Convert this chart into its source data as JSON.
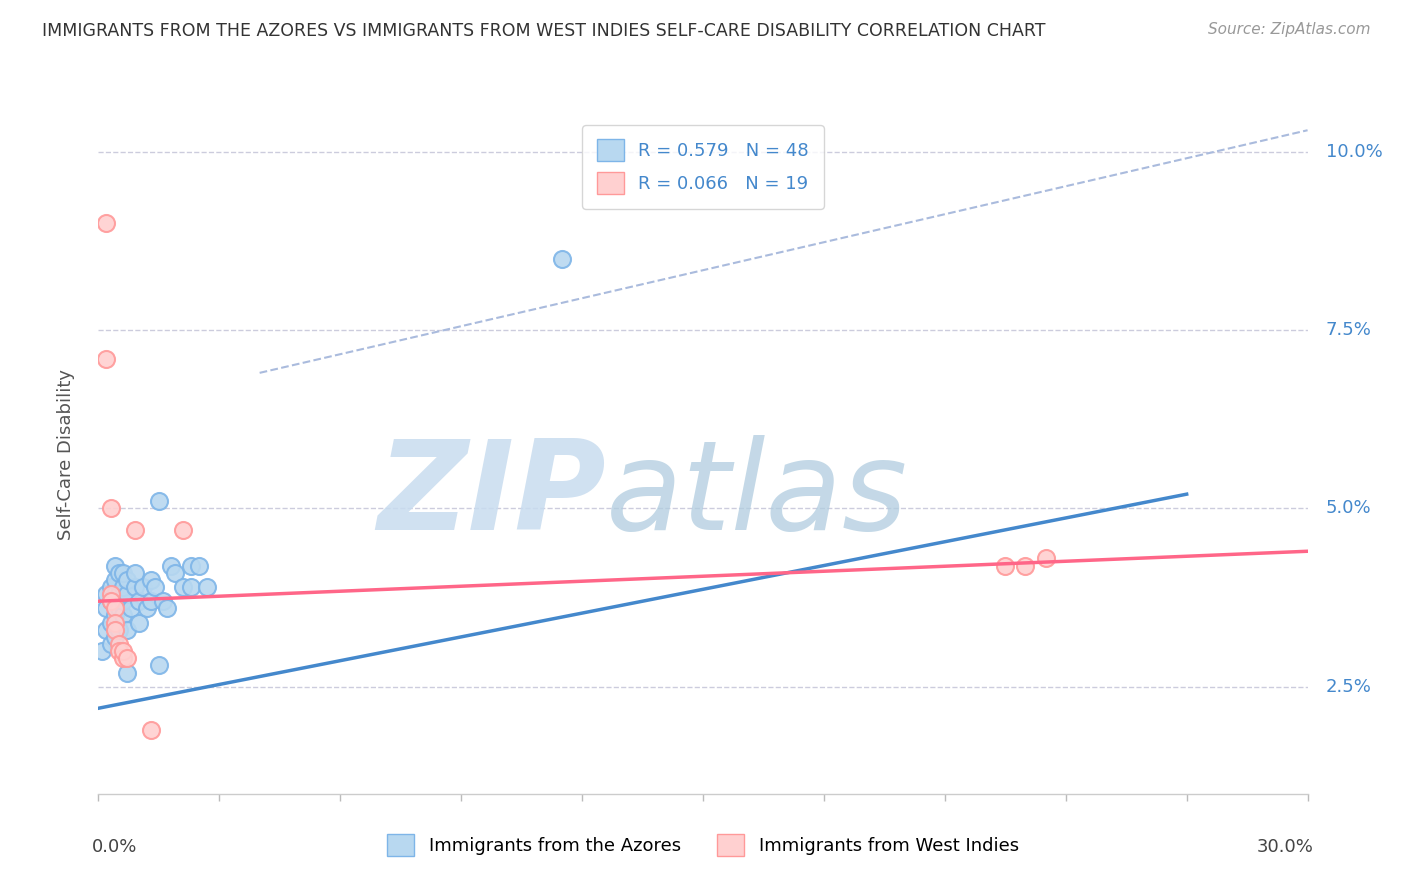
{
  "title": "IMMIGRANTS FROM THE AZORES VS IMMIGRANTS FROM WEST INDIES SELF-CARE DISABILITY CORRELATION CHART",
  "source": "Source: ZipAtlas.com",
  "ylabel": "Self-Care Disability",
  "xlim": [
    0.0,
    0.3
  ],
  "ylim": [
    0.01,
    0.105
  ],
  "ylim_display": [
    0.0,
    0.105
  ],
  "ytick_values": [
    0.025,
    0.05,
    0.075,
    0.1
  ],
  "ytick_labels": [
    "2.5%",
    "5.0%",
    "7.5%",
    "10.0%"
  ],
  "xtick_values": [
    0.0,
    0.03,
    0.06,
    0.09,
    0.12,
    0.15,
    0.18,
    0.21,
    0.24,
    0.27,
    0.3
  ],
  "blue_R": 0.579,
  "blue_N": 48,
  "pink_R": 0.066,
  "pink_N": 19,
  "blue_dot_color": "#7EB5E8",
  "blue_dot_fill": "#B8D8F0",
  "pink_dot_color": "#FF9999",
  "pink_dot_fill": "#FFD0D0",
  "blue_line_color": "#4488CC",
  "pink_line_color": "#FF6688",
  "ref_line_color": "#AABBDD",
  "watermark_color": "#D4E8F8",
  "blue_dots": [
    [
      0.001,
      0.03
    ],
    [
      0.002,
      0.033
    ],
    [
      0.002,
      0.036
    ],
    [
      0.002,
      0.038
    ],
    [
      0.003,
      0.031
    ],
    [
      0.003,
      0.034
    ],
    [
      0.003,
      0.037
    ],
    [
      0.003,
      0.039
    ],
    [
      0.004,
      0.032
    ],
    [
      0.004,
      0.035
    ],
    [
      0.004,
      0.037
    ],
    [
      0.004,
      0.038
    ],
    [
      0.004,
      0.04
    ],
    [
      0.004,
      0.042
    ],
    [
      0.005,
      0.033
    ],
    [
      0.005,
      0.036
    ],
    [
      0.005,
      0.038
    ],
    [
      0.005,
      0.041
    ],
    [
      0.006,
      0.035
    ],
    [
      0.006,
      0.037
    ],
    [
      0.006,
      0.039
    ],
    [
      0.006,
      0.041
    ],
    [
      0.007,
      0.033
    ],
    [
      0.007,
      0.038
    ],
    [
      0.007,
      0.04
    ],
    [
      0.007,
      0.027
    ],
    [
      0.008,
      0.036
    ],
    [
      0.009,
      0.039
    ],
    [
      0.009,
      0.041
    ],
    [
      0.01,
      0.034
    ],
    [
      0.01,
      0.037
    ],
    [
      0.011,
      0.039
    ],
    [
      0.012,
      0.036
    ],
    [
      0.013,
      0.04
    ],
    [
      0.013,
      0.037
    ],
    [
      0.014,
      0.039
    ],
    [
      0.015,
      0.051
    ],
    [
      0.015,
      0.028
    ],
    [
      0.016,
      0.037
    ],
    [
      0.017,
      0.036
    ],
    [
      0.018,
      0.042
    ],
    [
      0.019,
      0.041
    ],
    [
      0.021,
      0.039
    ],
    [
      0.023,
      0.042
    ],
    [
      0.023,
      0.039
    ],
    [
      0.025,
      0.042
    ],
    [
      0.027,
      0.039
    ],
    [
      0.115,
      0.085
    ]
  ],
  "pink_dots": [
    [
      0.002,
      0.09
    ],
    [
      0.002,
      0.071
    ],
    [
      0.003,
      0.05
    ],
    [
      0.003,
      0.038
    ],
    [
      0.003,
      0.037
    ],
    [
      0.004,
      0.036
    ],
    [
      0.004,
      0.034
    ],
    [
      0.004,
      0.033
    ],
    [
      0.005,
      0.031
    ],
    [
      0.005,
      0.03
    ],
    [
      0.006,
      0.029
    ],
    [
      0.006,
      0.03
    ],
    [
      0.007,
      0.029
    ],
    [
      0.009,
      0.047
    ],
    [
      0.013,
      0.019
    ],
    [
      0.021,
      0.047
    ],
    [
      0.225,
      0.042
    ],
    [
      0.23,
      0.042
    ],
    [
      0.235,
      0.043
    ]
  ],
  "blue_line": [
    [
      0.0,
      0.022
    ],
    [
      0.27,
      0.052
    ]
  ],
  "pink_line": [
    [
      0.0,
      0.037
    ],
    [
      0.3,
      0.044
    ]
  ],
  "dashed_line": [
    [
      0.04,
      0.069
    ],
    [
      0.3,
      0.103
    ]
  ]
}
